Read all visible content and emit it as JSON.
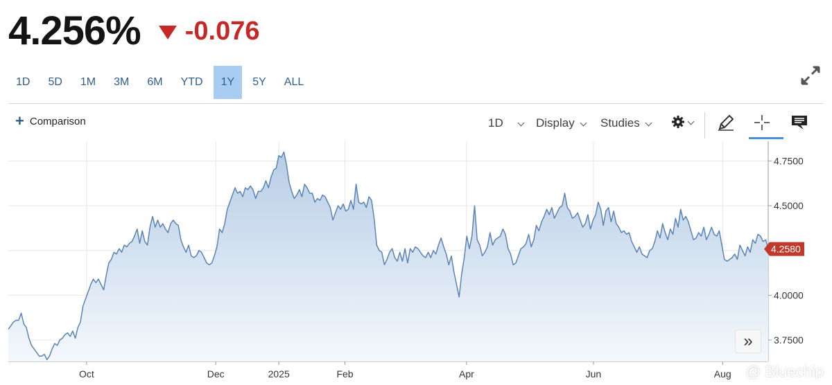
{
  "quote": {
    "price": "4.256%",
    "change": "-0.076",
    "change_color": "#c62828",
    "direction_icon": "down-triangle-icon"
  },
  "ranges": [
    {
      "label": "1D"
    },
    {
      "label": "5D"
    },
    {
      "label": "1M"
    },
    {
      "label": "3M"
    },
    {
      "label": "6M"
    },
    {
      "label": "YTD"
    },
    {
      "label": "1Y",
      "active": true
    },
    {
      "label": "5Y"
    },
    {
      "label": "ALL"
    }
  ],
  "toolbar": {
    "comparison": "Comparison",
    "interval": "1D",
    "display": "Display",
    "studies": "Studies",
    "icons": [
      "plus-icon",
      "gear-icon",
      "pencil-icon",
      "crosshair-icon",
      "comment-icon",
      "expand-icon",
      "double-chevron-right-icon"
    ]
  },
  "watermark": "@ Bluechip",
  "chart_data": {
    "type": "area",
    "x_tick_labels": [
      "Oct",
      "Dec",
      "2025",
      "Feb",
      "Apr",
      "Jun",
      "Aug"
    ],
    "y_tick_labels": [
      "4.7500",
      "4.5000",
      "4.2500",
      "4.0000",
      "3.7500"
    ],
    "y_ticks": [
      4.75,
      4.5,
      4.25,
      4.0,
      3.75
    ],
    "ylim": [
      3.63,
      4.86
    ],
    "last_value": 4.258,
    "last_value_label": "4.2580",
    "line_color": "#5a83b5",
    "fill_top_color": "#b7cde6",
    "fill_bottom_color": "#f4f8fc",
    "last_label_color": "#c0392b",
    "grid": true,
    "values": [
      3.81,
      3.83,
      3.85,
      3.86,
      3.86,
      3.9,
      3.84,
      3.82,
      3.76,
      3.72,
      3.7,
      3.68,
      3.66,
      3.66,
      3.67,
      3.64,
      3.66,
      3.7,
      3.73,
      3.72,
      3.75,
      3.76,
      3.78,
      3.79,
      3.77,
      3.8,
      3.76,
      3.82,
      3.85,
      3.94,
      3.98,
      4.02,
      4.06,
      4.09,
      4.07,
      4.09,
      4.06,
      4.03,
      4.11,
      4.18,
      4.2,
      4.24,
      4.23,
      4.26,
      4.24,
      4.28,
      4.27,
      4.29,
      4.3,
      4.33,
      4.37,
      4.29,
      4.36,
      4.3,
      4.28,
      4.38,
      4.44,
      4.38,
      4.42,
      4.38,
      4.4,
      4.37,
      4.35,
      4.4,
      4.42,
      4.4,
      4.39,
      4.31,
      4.27,
      4.24,
      4.28,
      4.22,
      4.21,
      4.22,
      4.25,
      4.24,
      4.21,
      4.18,
      4.17,
      4.18,
      4.22,
      4.27,
      4.37,
      4.35,
      4.4,
      4.48,
      4.52,
      4.56,
      4.6,
      4.57,
      4.58,
      4.55,
      4.6,
      4.59,
      4.61,
      4.59,
      4.54,
      4.58,
      4.58,
      4.6,
      4.64,
      4.6,
      4.66,
      4.7,
      4.71,
      4.78,
      4.77,
      4.8,
      4.73,
      4.63,
      4.58,
      4.54,
      4.56,
      4.59,
      4.55,
      4.62,
      4.6,
      4.57,
      4.57,
      4.52,
      4.54,
      4.53,
      4.56,
      4.55,
      4.52,
      4.49,
      4.42,
      4.46,
      4.5,
      4.48,
      4.51,
      4.47,
      4.48,
      4.53,
      4.48,
      4.62,
      4.52,
      4.51,
      4.52,
      4.49,
      4.55,
      4.53,
      4.43,
      4.28,
      4.25,
      4.24,
      4.17,
      4.2,
      4.24,
      4.26,
      4.21,
      4.19,
      4.24,
      4.19,
      4.26,
      4.18,
      4.26,
      4.24,
      4.27,
      4.26,
      4.24,
      4.22,
      4.21,
      4.24,
      4.21,
      4.25,
      4.23,
      4.28,
      4.32,
      4.27,
      4.23,
      4.17,
      4.22,
      4.13,
      4.06,
      3.99,
      4.12,
      4.21,
      4.33,
      4.26,
      4.33,
      4.5,
      4.31,
      4.28,
      4.22,
      4.24,
      4.27,
      4.35,
      4.28,
      4.31,
      4.32,
      4.33,
      4.37,
      4.34,
      4.26,
      4.23,
      4.17,
      4.18,
      4.22,
      4.26,
      4.27,
      4.29,
      4.34,
      4.27,
      4.31,
      4.39,
      4.36,
      4.41,
      4.44,
      4.48,
      4.45,
      4.49,
      4.43,
      4.46,
      4.49,
      4.5,
      4.57,
      4.49,
      4.47,
      4.43,
      4.44,
      4.46,
      4.42,
      4.38,
      4.4,
      4.45,
      4.37,
      4.42,
      4.45,
      4.52,
      4.48,
      4.39,
      4.47,
      4.49,
      4.41,
      4.47,
      4.4,
      4.38,
      4.35,
      4.36,
      4.34,
      4.35,
      4.3,
      4.27,
      4.24,
      4.27,
      4.23,
      4.22,
      4.21,
      4.25,
      4.26,
      4.3,
      4.36,
      4.32,
      4.4,
      4.35,
      4.31,
      4.37,
      4.34,
      4.43,
      4.38,
      4.48,
      4.42,
      4.44,
      4.41,
      4.36,
      4.31,
      4.32,
      4.35,
      4.33,
      4.38,
      4.31,
      4.34,
      4.38,
      4.34,
      4.33,
      4.36,
      4.28,
      4.2,
      4.19,
      4.2,
      4.21,
      4.23,
      4.2,
      4.28,
      4.25,
      4.22,
      4.27,
      4.24,
      4.31,
      4.29,
      4.34,
      4.33,
      4.3,
      4.31,
      4.26
    ]
  }
}
